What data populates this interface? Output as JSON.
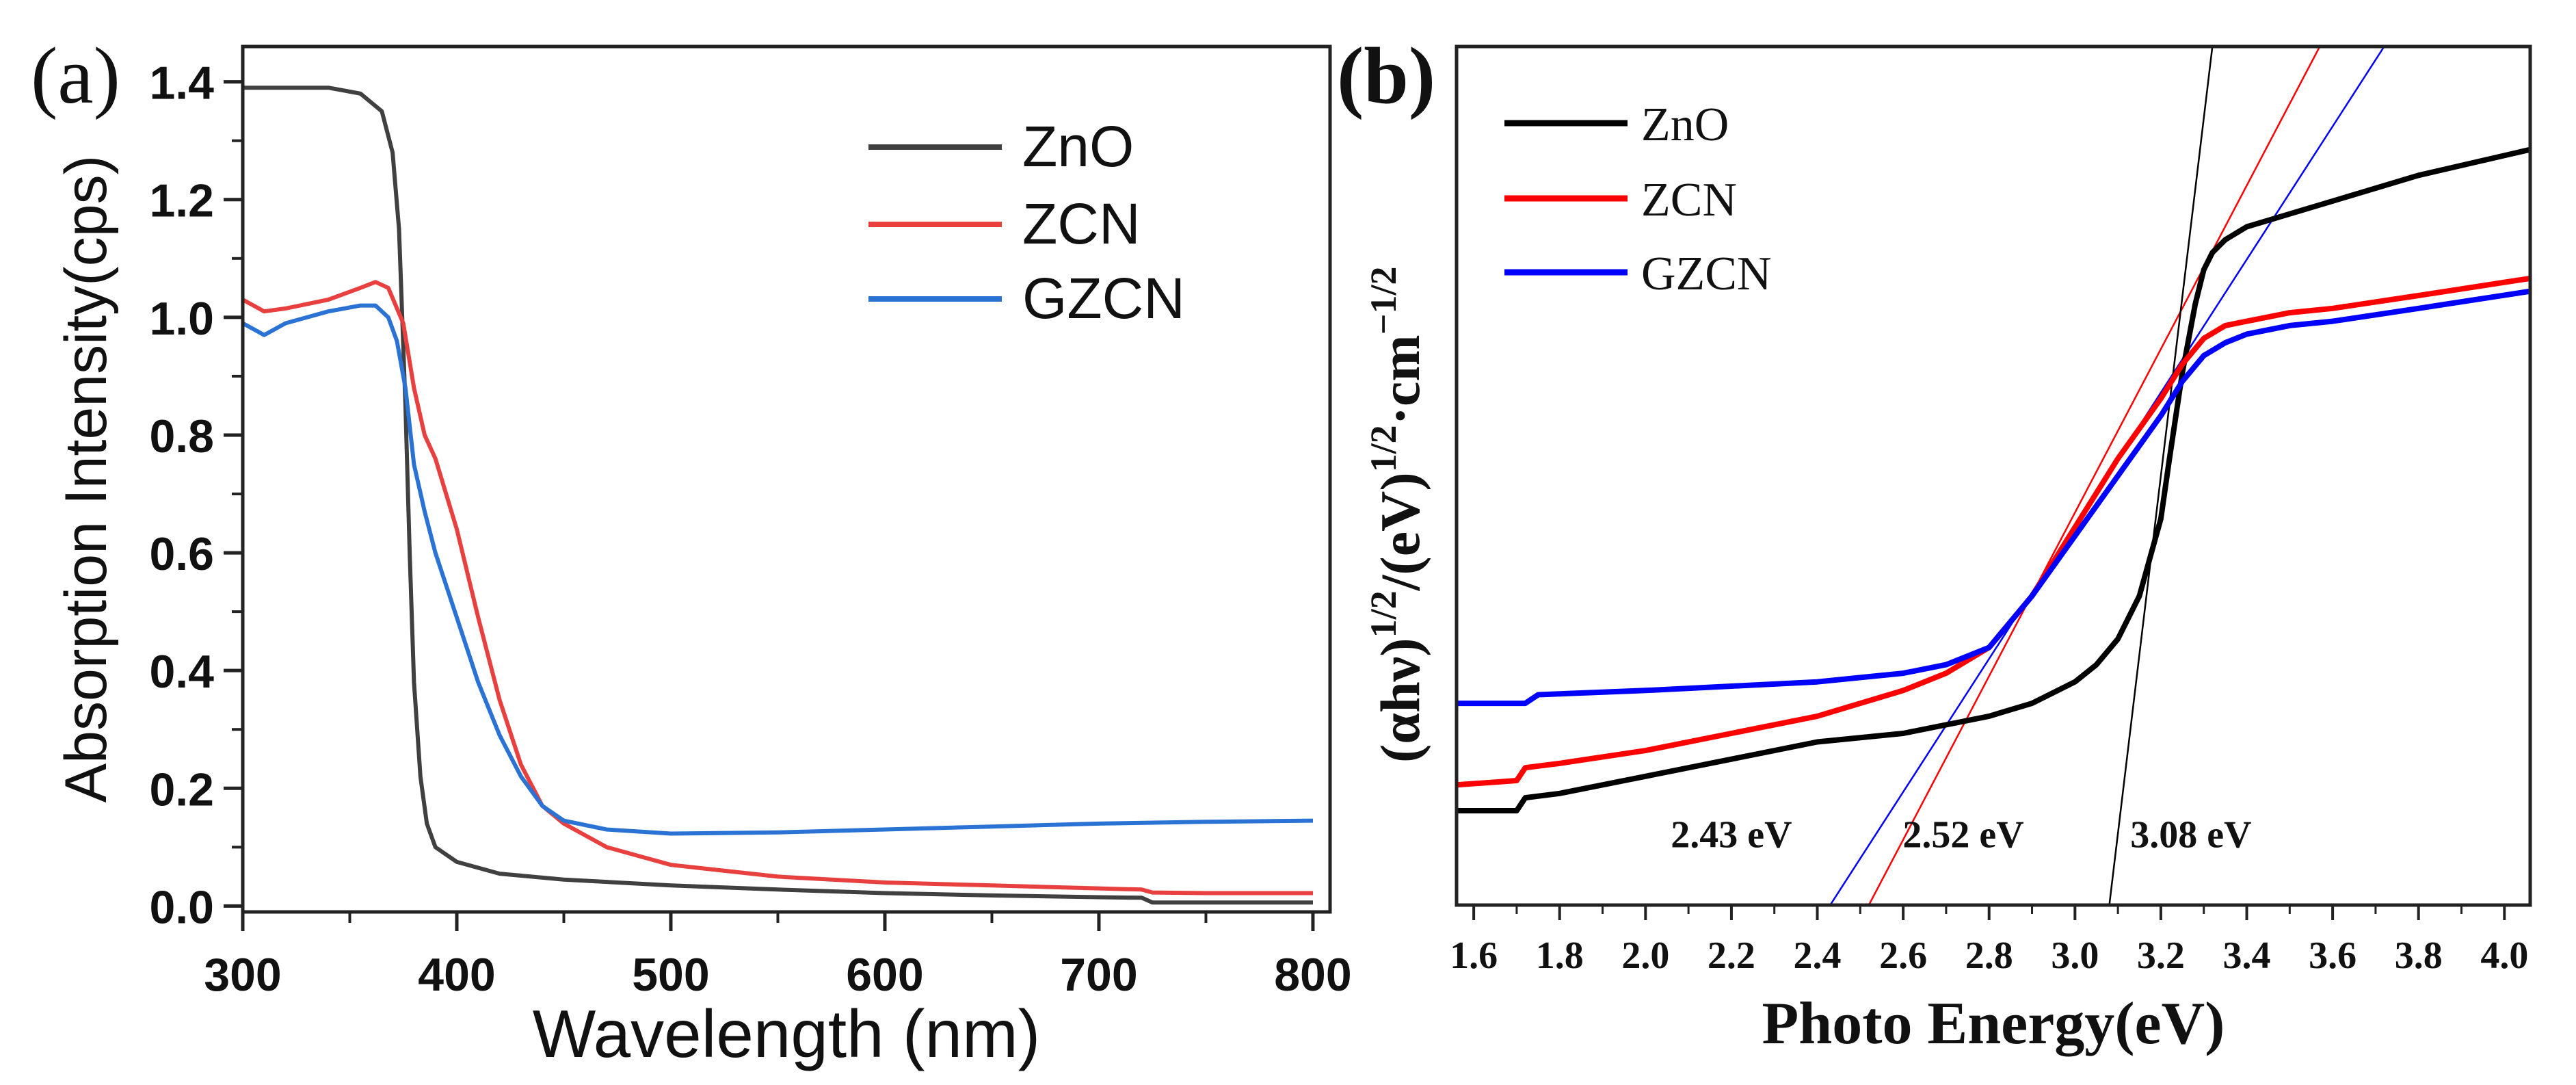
{
  "panel_labels": {
    "a": "(a)",
    "b": "(b)"
  },
  "chart_data": [
    {
      "type": "line",
      "panel": "(a)",
      "title": "",
      "xlabel": "Wavelength (nm)",
      "ylabel": "Absorption Intensity(cps)",
      "xlim": [
        300,
        808
      ],
      "ylim": [
        -0.01,
        1.46
      ],
      "xticks": [
        300,
        400,
        500,
        600,
        700,
        800
      ],
      "xtick_labels": [
        "300",
        "400",
        "500",
        "600",
        "700",
        "800"
      ],
      "yticks": [
        0.0,
        0.2,
        0.4,
        0.6,
        0.8,
        1.0,
        1.2,
        1.4
      ],
      "ytick_labels": [
        "0.0",
        "0.2",
        "0.4",
        "0.6",
        "0.8",
        "1.0",
        "1.2",
        "1.4"
      ],
      "legend_position": "top-right",
      "series": [
        {
          "name": "ZnO",
          "color": "#404040",
          "x": [
            300,
            320,
            340,
            355,
            365,
            370,
            373,
            376,
            378,
            380,
            383,
            386,
            390,
            400,
            420,
            450,
            500,
            550,
            600,
            650,
            700,
            720,
            725,
            750,
            800
          ],
          "y": [
            1.39,
            1.39,
            1.39,
            1.38,
            1.35,
            1.28,
            1.15,
            0.85,
            0.6,
            0.38,
            0.22,
            0.14,
            0.1,
            0.075,
            0.055,
            0.045,
            0.035,
            0.028,
            0.022,
            0.018,
            0.015,
            0.014,
            0.006,
            0.006,
            0.006
          ]
        },
        {
          "name": "ZCN",
          "color": "#e8403f",
          "x": [
            300,
            310,
            320,
            340,
            355,
            362,
            368,
            375,
            380,
            385,
            390,
            400,
            410,
            420,
            430,
            440,
            450,
            470,
            500,
            550,
            600,
            650,
            700,
            720,
            725,
            750,
            800
          ],
          "y": [
            1.03,
            1.01,
            1.015,
            1.03,
            1.05,
            1.06,
            1.05,
            0.99,
            0.88,
            0.8,
            0.76,
            0.64,
            0.49,
            0.35,
            0.24,
            0.17,
            0.14,
            0.1,
            0.07,
            0.05,
            0.04,
            0.035,
            0.03,
            0.028,
            0.023,
            0.022,
            0.022
          ]
        },
        {
          "name": "GZCN",
          "color": "#2a72d4",
          "x": [
            300,
            310,
            320,
            340,
            355,
            362,
            368,
            372,
            376,
            380,
            385,
            390,
            400,
            410,
            420,
            430,
            440,
            450,
            470,
            500,
            550,
            600,
            650,
            700,
            750,
            800
          ],
          "y": [
            0.99,
            0.97,
            0.99,
            1.01,
            1.02,
            1.02,
            1.0,
            0.96,
            0.88,
            0.75,
            0.67,
            0.6,
            0.49,
            0.38,
            0.29,
            0.22,
            0.17,
            0.145,
            0.13,
            0.123,
            0.125,
            0.13,
            0.135,
            0.14,
            0.143,
            0.145
          ]
        }
      ]
    },
    {
      "type": "line",
      "panel": "(b)",
      "title": "",
      "xlabel": "Photo Energy(eV)",
      "ylabel_main": "(αhν)",
      "ylabel_exp1": "1/2",
      "ylabel_mid": "/(eV)",
      "ylabel_exp2": "1/2",
      "ylabel_end": "·cm",
      "ylabel_exp3": "−1/2",
      "xlim": [
        1.56,
        4.06
      ],
      "ylim": [
        0.0,
        1.0
      ],
      "y_tick_labels_shown": false,
      "xticks": [
        1.6,
        1.8,
        2.0,
        2.2,
        2.4,
        2.6,
        2.8,
        3.0,
        3.2,
        3.4,
        3.6,
        3.8,
        4.0
      ],
      "xtick_labels": [
        "1.6",
        "1.8",
        "2.0",
        "2.2",
        "2.4",
        "2.6",
        "2.8",
        "3.0",
        "3.2",
        "3.4",
        "3.6",
        "3.8",
        "4.0"
      ],
      "legend_position": "top-left",
      "series": [
        {
          "name": "ZnO",
          "color": "#000000",
          "x": [
            1.56,
            1.7,
            1.72,
            1.8,
            2.0,
            2.2,
            2.4,
            2.6,
            2.8,
            2.9,
            3.0,
            3.05,
            3.1,
            3.15,
            3.2,
            3.22,
            3.25,
            3.28,
            3.3,
            3.32,
            3.35,
            3.4,
            3.5,
            3.6,
            3.8,
            4.06
          ],
          "y": [
            0.11,
            0.11,
            0.125,
            0.13,
            0.15,
            0.17,
            0.19,
            0.2,
            0.22,
            0.235,
            0.26,
            0.28,
            0.31,
            0.36,
            0.45,
            0.52,
            0.62,
            0.7,
            0.74,
            0.76,
            0.775,
            0.79,
            0.805,
            0.82,
            0.85,
            0.88
          ]
        },
        {
          "name": "ZCN",
          "color": "#ff0000",
          "x": [
            1.56,
            1.7,
            1.72,
            1.8,
            2.0,
            2.2,
            2.4,
            2.6,
            2.7,
            2.8,
            2.85,
            2.9,
            3.0,
            3.1,
            3.2,
            3.25,
            3.3,
            3.35,
            3.4,
            3.5,
            3.6,
            3.8,
            4.06
          ],
          "y": [
            0.14,
            0.145,
            0.16,
            0.165,
            0.18,
            0.2,
            0.22,
            0.25,
            0.27,
            0.3,
            0.33,
            0.36,
            0.44,
            0.52,
            0.59,
            0.63,
            0.66,
            0.675,
            0.68,
            0.69,
            0.695,
            0.71,
            0.73
          ]
        },
        {
          "name": "GZCN",
          "color": "#0000ff",
          "x": [
            1.56,
            1.72,
            1.75,
            2.0,
            2.2,
            2.4,
            2.5,
            2.6,
            2.7,
            2.8,
            2.85,
            2.9,
            3.0,
            3.1,
            3.2,
            3.25,
            3.3,
            3.35,
            3.4,
            3.5,
            3.6,
            3.8,
            4.06
          ],
          "y": [
            0.235,
            0.235,
            0.245,
            0.25,
            0.255,
            0.26,
            0.265,
            0.27,
            0.28,
            0.3,
            0.33,
            0.36,
            0.43,
            0.5,
            0.57,
            0.61,
            0.64,
            0.655,
            0.665,
            0.675,
            0.68,
            0.695,
            0.715
          ]
        }
      ],
      "tangent_lines": [
        {
          "name": "GZCN fit",
          "color": "#0000ff",
          "x": [
            2.43,
            3.72
          ],
          "y": [
            0.0,
            1.0
          ]
        },
        {
          "name": "ZCN fit",
          "color": "#ff0000",
          "x": [
            2.52,
            3.57
          ],
          "y": [
            0.0,
            1.0
          ]
        },
        {
          "name": "ZnO fit",
          "color": "#000000",
          "x": [
            3.08,
            3.32
          ],
          "y": [
            0.0,
            1.0
          ]
        }
      ],
      "annotations": [
        {
          "text": "2.43 eV",
          "x": 2.2,
          "y": 0.05
        },
        {
          "text": "2.52 eV",
          "x": 2.74,
          "y": 0.05
        },
        {
          "text": "3.08 eV",
          "x": 3.27,
          "y": 0.05
        }
      ]
    }
  ]
}
